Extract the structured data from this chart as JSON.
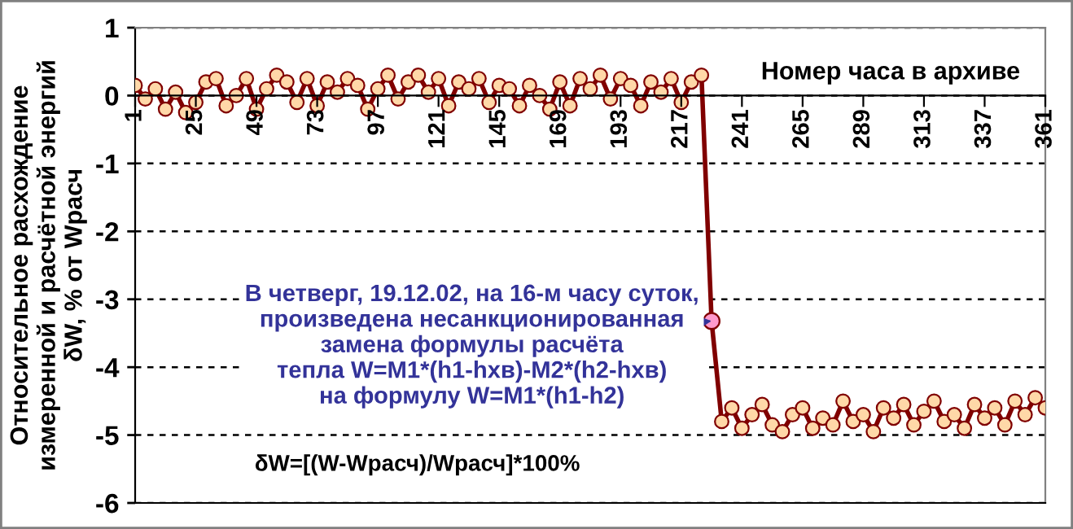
{
  "chart_data": {
    "type": "line",
    "xlabel": "Номер часа в архиве",
    "ylabel": "Относительное расхождение\nизмеренной и расчётной энергий\nδW, % от Wрасч",
    "annotations": [
      {
        "text": "В четверг, 19.12.02, на 16-м часу суток,\nпроизведена несанкционированная\nзамена формулы расчёта\nтепла W=M1*(h1-hхв)-M2*(h2-hхв)\nна формулу W=M1*(h1-h2)",
        "x": 229,
        "y": -3.32
      },
      "δW=[(W-Wрасч)/Wрасч]*100%"
    ],
    "series": [
      {
        "color": "#800000",
        "marker": "circle",
        "x": [
          1,
          5,
          9,
          13,
          17,
          21,
          25,
          29,
          33,
          37,
          41,
          45,
          49,
          53,
          57,
          61,
          65,
          69,
          73,
          77,
          81,
          85,
          89,
          93,
          97,
          101,
          105,
          109,
          113,
          117,
          121,
          125,
          129,
          133,
          137,
          141,
          145,
          149,
          153,
          157,
          161,
          165,
          169,
          173,
          177,
          181,
          185,
          189,
          193,
          197,
          201,
          205,
          209,
          213,
          217,
          221,
          225,
          229,
          233,
          237,
          241,
          245,
          249,
          253,
          257,
          261,
          265,
          269,
          273,
          277,
          281,
          285,
          289,
          293,
          297,
          301,
          305,
          309,
          313,
          317,
          321,
          325,
          329,
          333,
          337,
          341,
          345,
          349,
          353,
          357,
          361
        ],
        "values": [
          0.15,
          -0.05,
          0.1,
          -0.2,
          0.05,
          -0.25,
          -0.1,
          0.2,
          0.25,
          -0.15,
          0.0,
          0.25,
          -0.2,
          0.1,
          0.3,
          0.2,
          -0.1,
          0.25,
          -0.15,
          0.2,
          0.05,
          0.25,
          0.15,
          -0.2,
          0.1,
          0.3,
          -0.05,
          0.2,
          0.3,
          0.05,
          0.25,
          -0.15,
          0.2,
          0.1,
          0.25,
          -0.1,
          0.15,
          0.1,
          -0.15,
          0.15,
          0.0,
          -0.2,
          0.2,
          -0.15,
          0.25,
          0.1,
          0.3,
          -0.05,
          0.25,
          0.15,
          -0.15,
          0.2,
          0.05,
          0.25,
          -0.1,
          0.2,
          0.3,
          -3.32,
          -4.8,
          -4.6,
          -4.9,
          -4.7,
          -4.55,
          -4.85,
          -4.95,
          -4.7,
          -4.6,
          -4.9,
          -4.75,
          -4.85,
          -4.5,
          -4.8,
          -4.7,
          -4.95,
          -4.6,
          -4.75,
          -4.55,
          -4.85,
          -4.65,
          -4.5,
          -4.8,
          -4.7,
          -4.9,
          -4.55,
          -4.75,
          -4.6,
          -4.85,
          -4.5,
          -4.7,
          -4.45,
          -4.6
        ]
      },
      {
        "type": "scatter",
        "color": "#ff99cc",
        "marker": "circle",
        "x": [
          229
        ],
        "values": [
          -3.32
        ]
      }
    ],
    "xlim": [
      1,
      361
    ],
    "xticks": [
      1,
      25,
      49,
      73,
      97,
      121,
      145,
      169,
      193,
      217,
      241,
      265,
      289,
      313,
      337,
      361
    ],
    "ylim": [
      -6,
      1
    ],
    "yticks": [
      1,
      0,
      -1,
      -2,
      -3,
      -4,
      -5,
      -6
    ],
    "grid": "y",
    "line_style": "solid"
  }
}
